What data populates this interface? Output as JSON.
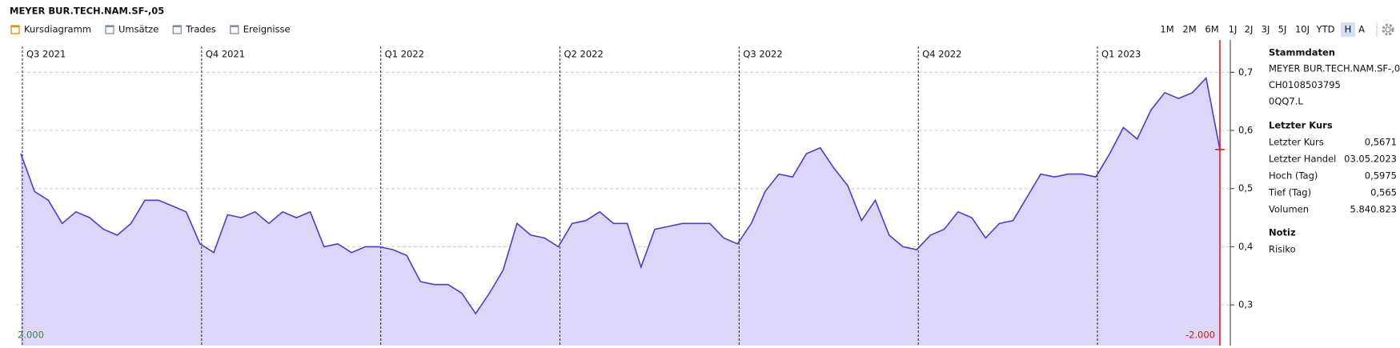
{
  "toolbar": {
    "title": "MEYER BUR.TECH.NAM.SF-,05",
    "toggles": [
      "Umsätze",
      "Trades",
      "Ereignisse"
    ],
    "ranges": [
      "1M",
      "2M",
      "6M",
      "1J",
      "2J",
      "3J",
      "5J",
      "10J",
      "YTD",
      "H",
      "A"
    ],
    "active_range": "H"
  },
  "chart_data": {
    "type": "area",
    "categories": [
      "Q3 2021",
      null,
      null,
      null,
      null,
      null,
      null,
      null,
      null,
      null,
      null,
      null,
      null,
      "Q4 2021",
      null,
      null,
      null,
      null,
      null,
      null,
      null,
      null,
      null,
      null,
      null,
      null,
      "Q1 2022",
      null,
      null,
      null,
      null,
      null,
      null,
      null,
      null,
      null,
      null,
      null,
      null,
      "Q2 2022",
      null,
      null,
      null,
      null,
      null,
      null,
      null,
      null,
      null,
      null,
      null,
      null,
      "Q3 2022",
      null,
      null,
      null,
      null,
      null,
      null,
      null,
      null,
      null,
      null,
      null,
      null,
      "Q4 2022",
      null,
      null,
      null,
      null,
      null,
      null,
      null,
      null,
      null,
      null,
      null,
      null,
      "Q1 2023",
      null,
      null,
      null,
      null,
      null,
      null,
      null,
      null,
      null
    ],
    "series": [
      {
        "name": "Kursdiagramm",
        "color": "#4a3ae0",
        "fill": "#dcd7f8",
        "values": [
          0.56,
          0.495,
          0.48,
          0.44,
          0.46,
          0.45,
          0.43,
          0.42,
          0.44,
          0.48,
          0.48,
          0.47,
          0.46,
          0.405,
          0.39,
          0.455,
          0.45,
          0.46,
          0.44,
          0.46,
          0.45,
          0.46,
          0.4,
          0.405,
          0.39,
          0.4,
          0.4,
          0.395,
          0.385,
          0.34,
          0.335,
          0.335,
          0.32,
          0.285,
          0.32,
          0.36,
          0.44,
          0.42,
          0.415,
          0.4,
          0.44,
          0.445,
          0.46,
          0.44,
          0.44,
          0.365,
          0.43,
          0.435,
          0.44,
          0.44,
          0.44,
          0.415,
          0.405,
          0.44,
          0.495,
          0.525,
          0.52,
          0.56,
          0.57,
          0.535,
          0.505,
          0.445,
          0.48,
          0.42,
          0.4,
          0.395,
          0.42,
          0.43,
          0.46,
          0.45,
          0.415,
          0.44,
          0.445,
          0.485,
          0.525,
          0.52,
          0.525,
          0.525,
          0.52,
          0.56,
          0.605,
          0.585,
          0.635,
          0.665,
          0.655,
          0.665,
          0.69,
          0.5671
        ]
      }
    ],
    "ylim": [
      0.23,
      0.75
    ],
    "yticks": [
      {
        "value": 0.3,
        "label": "0,3"
      },
      {
        "value": 0.4,
        "label": "0,4"
      },
      {
        "value": 0.5,
        "label": "0,5"
      },
      {
        "value": 0.6,
        "label": "0,6"
      },
      {
        "value": 0.7,
        "label": "0,7"
      }
    ],
    "grid": true,
    "left_label": "2.000",
    "right_label": "-2.000"
  },
  "sidebar": {
    "stammdaten": {
      "title": "Stammdaten",
      "lines": [
        "MEYER BUR.TECH.NAM.SF-,05",
        "CH0108503795",
        "0QQ7.L"
      ]
    },
    "kurs": {
      "title": "Letzter Kurs",
      "rows": [
        [
          "Letzter Kurs",
          "0,5671"
        ],
        [
          "Letzter Handel",
          "03.05.2023"
        ],
        [
          "Hoch (Tag)",
          "0,5975"
        ],
        [
          "Tief (Tag)",
          "0,565"
        ],
        [
          "Volumen",
          "5.840.823"
        ]
      ]
    },
    "notiz": {
      "title": "Notiz",
      "lines": [
        "Risiko"
      ]
    }
  }
}
